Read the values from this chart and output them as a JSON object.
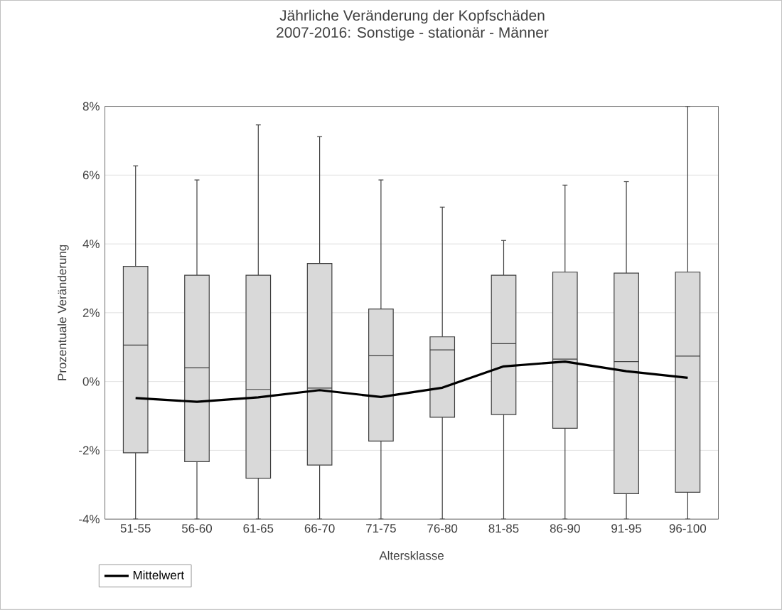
{
  "chart_data": {
    "type": "box",
    "title": "Jährliche Veränderung der Kopfschäden",
    "subtitle": "2007-2016: Sonstige - stationär - Männer",
    "xlabel": "Altersklasse",
    "ylabel": "Prozentuale Veränderung",
    "categories": [
      "51-55",
      "56-60",
      "61-65",
      "66-70",
      "71-75",
      "76-80",
      "81-85",
      "86-90",
      "91-95",
      "96-100"
    ],
    "ylim": [
      -4,
      8
    ],
    "yticks": [
      {
        "value": -4,
        "label": "-4%"
      },
      {
        "value": -2,
        "label": "-2%"
      },
      {
        "value": 0,
        "label": "0%"
      },
      {
        "value": 2,
        "label": "2%"
      },
      {
        "value": 4,
        "label": "4%"
      },
      {
        "value": 6,
        "label": "6%"
      },
      {
        "value": 8,
        "label": "8%"
      }
    ],
    "grid": "y",
    "legend": "bottom left",
    "series": [
      {
        "type": "box",
        "color": "#d9d9d9",
        "boxes": [
          {
            "low": -4,
            "q1": -2.07,
            "median": 1.06,
            "q3": 3.35,
            "high": 6.27
          },
          {
            "low": -4,
            "q1": -2.33,
            "median": 0.4,
            "q3": 3.09,
            "high": 5.86
          },
          {
            "low": -4,
            "q1": -2.81,
            "median": -0.23,
            "q3": 3.09,
            "high": 7.46
          },
          {
            "low": -4,
            "q1": -2.43,
            "median": -0.19,
            "q3": 3.43,
            "high": 7.12
          },
          {
            "low": -4,
            "q1": -1.73,
            "median": 0.75,
            "q3": 2.11,
            "high": 5.86
          },
          {
            "low": -4,
            "q1": -1.04,
            "median": 0.92,
            "q3": 1.3,
            "high": 5.07
          },
          {
            "low": -4,
            "q1": -0.96,
            "median": 1.1,
            "q3": 3.09,
            "high": 4.1
          },
          {
            "low": -4,
            "q1": -1.36,
            "median": 0.65,
            "q3": 3.18,
            "high": 5.71
          },
          {
            "low": -4,
            "q1": -3.26,
            "median": 0.58,
            "q3": 3.15,
            "high": 5.81
          },
          {
            "low": -4,
            "q1": -3.22,
            "median": 0.74,
            "q3": 3.18,
            "high": 8
          }
        ]
      },
      {
        "type": "line",
        "name": "Mittelwert",
        "color": "#000000",
        "values": [
          -0.48,
          -0.59,
          -0.46,
          -0.25,
          -0.45,
          -0.18,
          0.44,
          0.58,
          0.3,
          0.11
        ]
      }
    ]
  }
}
